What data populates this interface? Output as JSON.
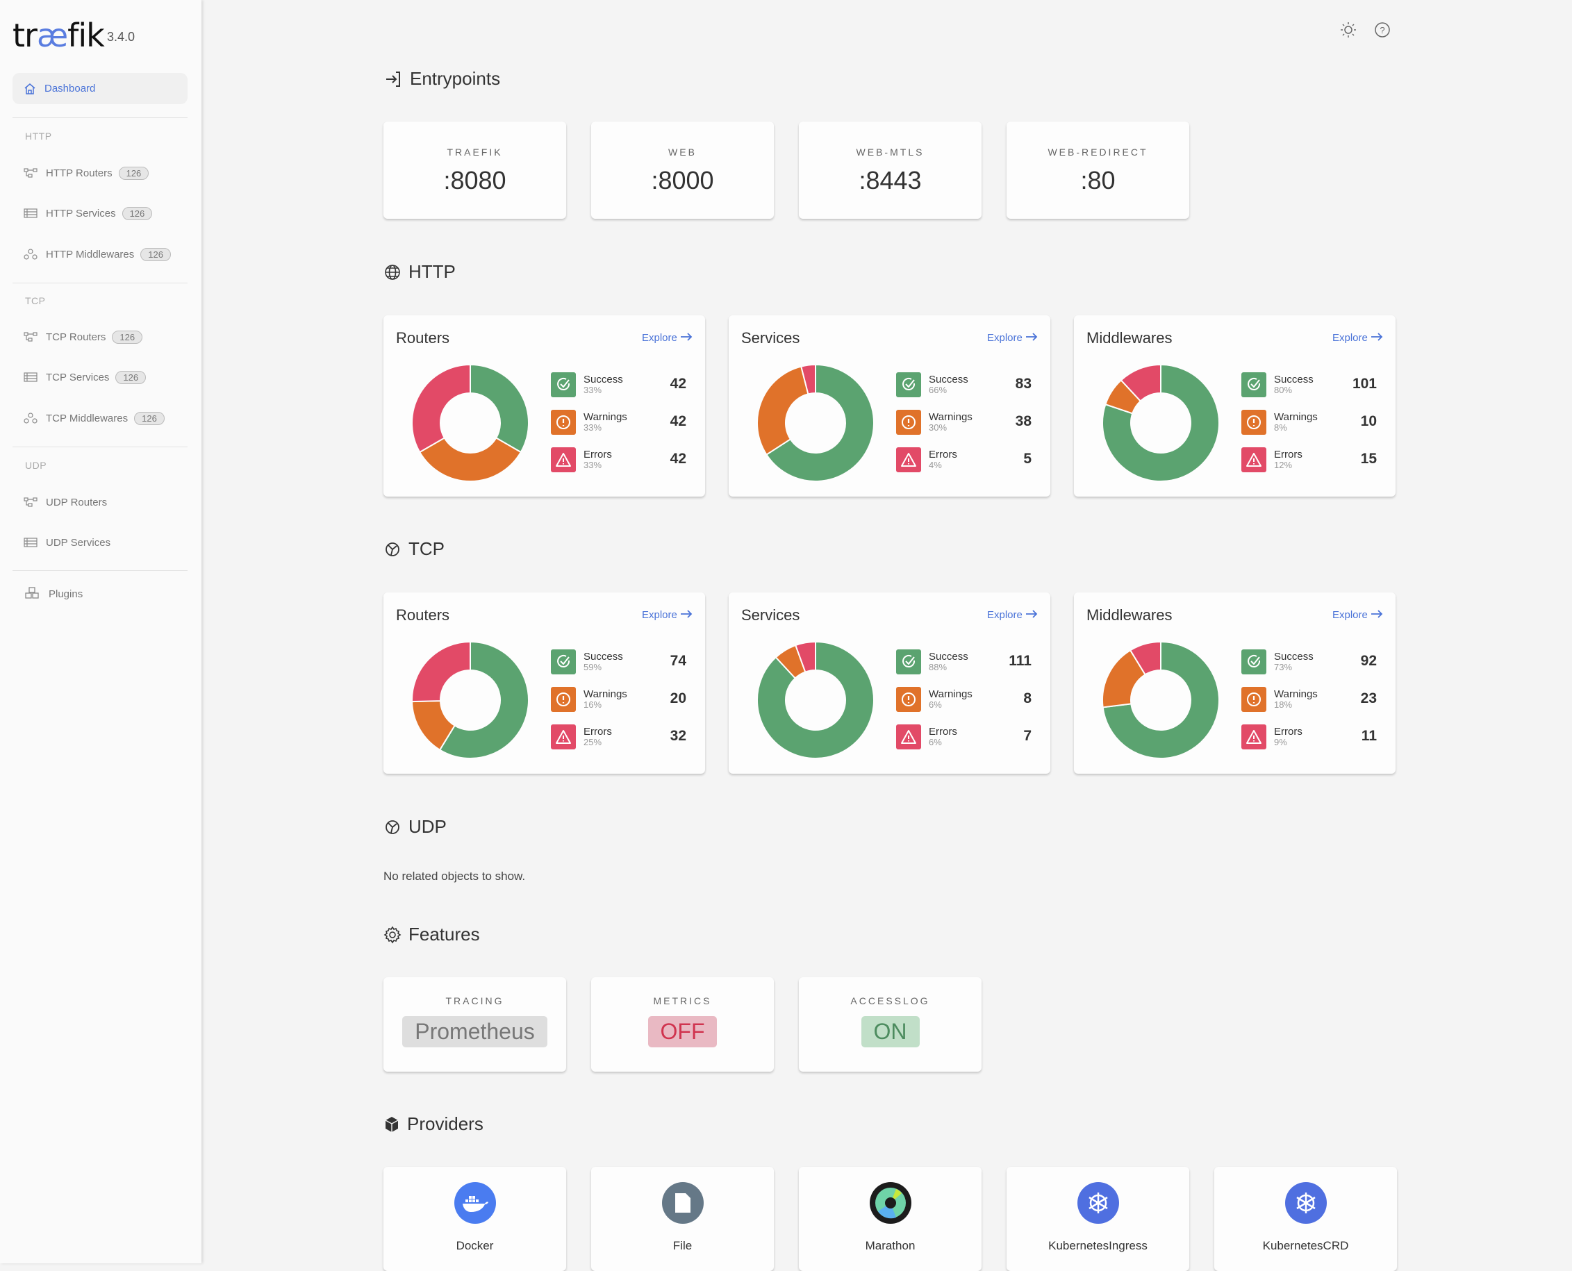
{
  "app": {
    "logo": "træfik",
    "version": "3.4.0"
  },
  "sidebar": {
    "dashboard": "Dashboard",
    "sections": [
      {
        "label": "HTTP",
        "items": [
          {
            "label": "HTTP Routers",
            "count": "126",
            "icon": "routers-icon"
          },
          {
            "label": "HTTP Services",
            "count": "126",
            "icon": "services-icon"
          },
          {
            "label": "HTTP Middlewares",
            "count": "126",
            "icon": "middlewares-icon"
          }
        ]
      },
      {
        "label": "TCP",
        "items": [
          {
            "label": "TCP Routers",
            "count": "126",
            "icon": "routers-icon"
          },
          {
            "label": "TCP Services",
            "count": "126",
            "icon": "services-icon"
          },
          {
            "label": "TCP Middlewares",
            "count": "126",
            "icon": "middlewares-icon"
          }
        ]
      },
      {
        "label": "UDP",
        "items": [
          {
            "label": "UDP Routers",
            "icon": "routers-icon"
          },
          {
            "label": "UDP Services",
            "icon": "services-icon"
          }
        ]
      }
    ],
    "plugins": "Plugins"
  },
  "colors": {
    "success": "#5ba370",
    "warning": "#e0722a",
    "error": "#e24a67",
    "accent": "#4a73d8"
  },
  "entrypoints": {
    "title": "Entrypoints",
    "items": [
      {
        "name": "TRAEFIK",
        "port": ":8080"
      },
      {
        "name": "WEB",
        "port": ":8000"
      },
      {
        "name": "WEB-MTLS",
        "port": ":8443"
      },
      {
        "name": "WEB-REDIRECT",
        "port": ":80"
      }
    ]
  },
  "legend": {
    "success": "Success",
    "warnings": "Warnings",
    "errors": "Errors",
    "explore": "Explore"
  },
  "http": {
    "title": "HTTP",
    "cards": [
      {
        "title": "Routers",
        "success": 42,
        "success_pct": "33%",
        "warnings": 42,
        "warnings_pct": "33%",
        "errors": 42,
        "errors_pct": "33%"
      },
      {
        "title": "Services",
        "success": 83,
        "success_pct": "66%",
        "warnings": 38,
        "warnings_pct": "30%",
        "errors": 5,
        "errors_pct": "4%"
      },
      {
        "title": "Middlewares",
        "success": 101,
        "success_pct": "80%",
        "warnings": 10,
        "warnings_pct": "8%",
        "errors": 15,
        "errors_pct": "12%"
      }
    ]
  },
  "tcp": {
    "title": "TCP",
    "cards": [
      {
        "title": "Routers",
        "success": 74,
        "success_pct": "59%",
        "warnings": 20,
        "warnings_pct": "16%",
        "errors": 32,
        "errors_pct": "25%"
      },
      {
        "title": "Services",
        "success": 111,
        "success_pct": "88%",
        "warnings": 8,
        "warnings_pct": "6%",
        "errors": 7,
        "errors_pct": "6%"
      },
      {
        "title": "Middlewares",
        "success": 92,
        "success_pct": "73%",
        "warnings": 23,
        "warnings_pct": "18%",
        "errors": 11,
        "errors_pct": "9%"
      }
    ]
  },
  "udp": {
    "title": "UDP",
    "empty": "No related objects to show."
  },
  "features": {
    "title": "Features",
    "items": [
      {
        "name": "TRACING",
        "value": "Prometheus",
        "bg": "#dedede",
        "fg": "#777"
      },
      {
        "name": "METRICS",
        "value": "OFF",
        "bg": "#e9b9c3",
        "fg": "#d0344f"
      },
      {
        "name": "ACCESSLOG",
        "value": "ON",
        "bg": "#c1dfc8",
        "fg": "#4d8c5f"
      }
    ]
  },
  "providers": {
    "title": "Providers",
    "items": [
      {
        "name": "Docker",
        "icon": "docker-icon",
        "color": "#4a7cf0"
      },
      {
        "name": "File",
        "icon": "file-icon",
        "color": "#657887"
      },
      {
        "name": "Marathon",
        "icon": "marathon-icon",
        "color": "#1c1c1c"
      },
      {
        "name": "KubernetesIngress",
        "icon": "kubernetes-icon",
        "color": "#4f6fe0"
      },
      {
        "name": "KubernetesCRD",
        "icon": "kubernetes-icon",
        "color": "#4f6fe0"
      }
    ]
  }
}
